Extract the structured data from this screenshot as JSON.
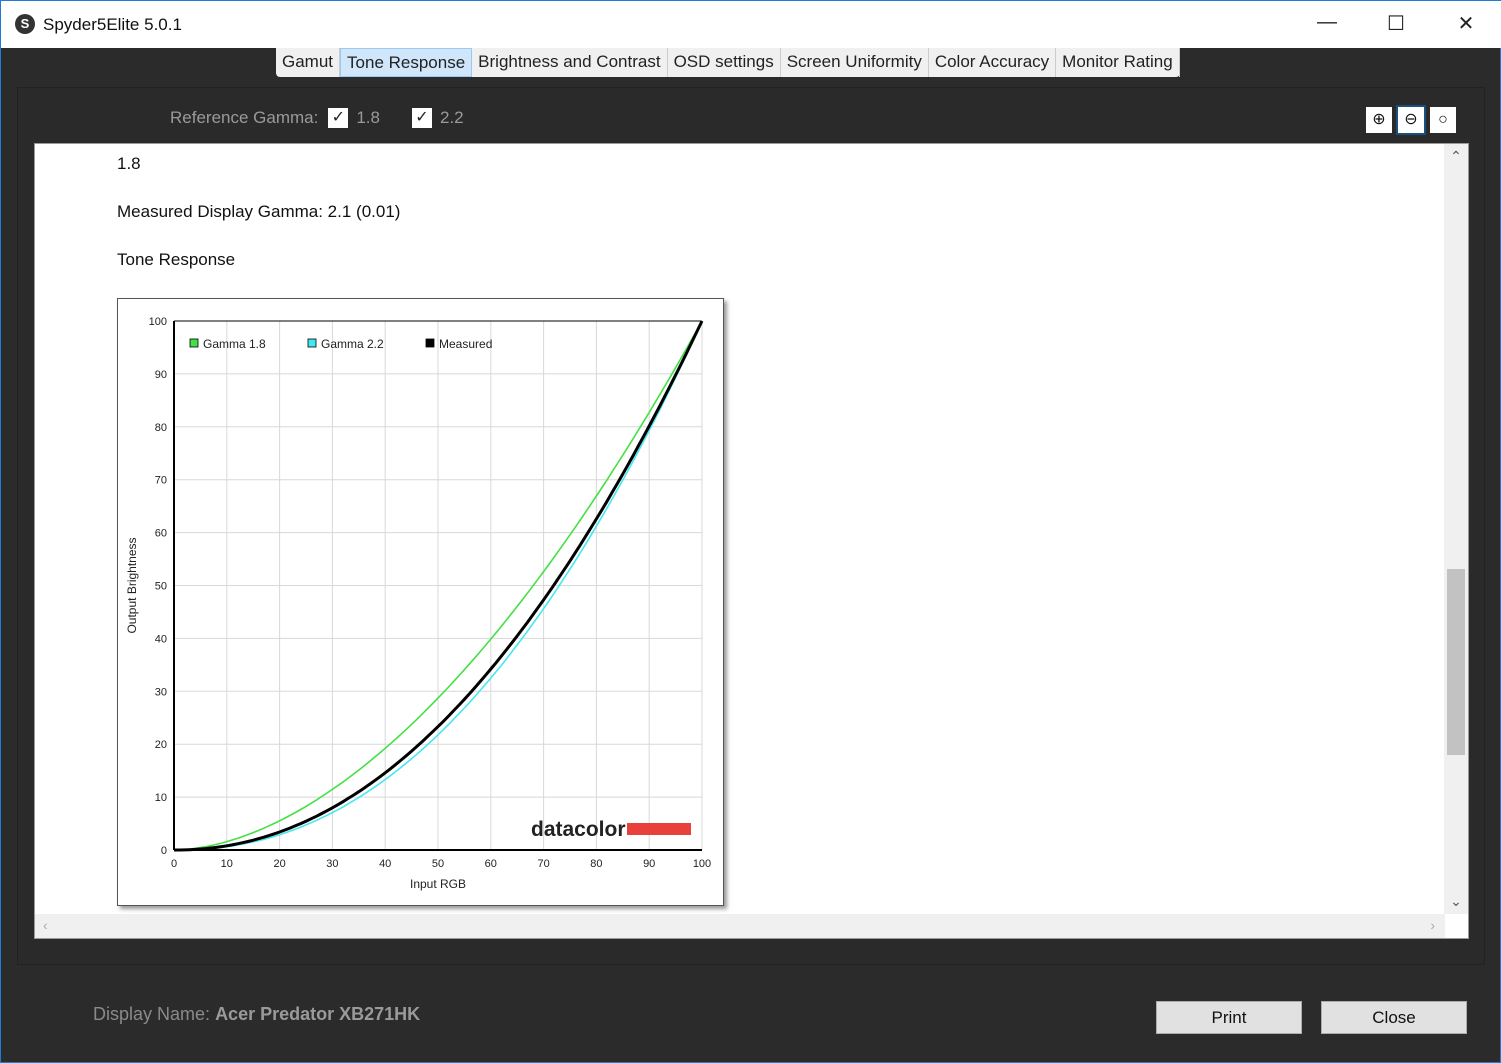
{
  "window": {
    "title": "Spyder5Elite 5.0.1",
    "minimize": "—",
    "maximize": "☐",
    "close": "✕"
  },
  "tabs": [
    {
      "label": "Gamut"
    },
    {
      "label": "Tone Response",
      "active": true
    },
    {
      "label": "Brightness and Contrast"
    },
    {
      "label": "OSD settings"
    },
    {
      "label": "Screen Uniformity"
    },
    {
      "label": "Color Accuracy"
    },
    {
      "label": "Monitor Rating"
    }
  ],
  "reference": {
    "label": "Reference Gamma:",
    "options": [
      {
        "value": "1.8",
        "checked": true
      },
      {
        "value": "2.2",
        "checked": true
      }
    ]
  },
  "report": {
    "line1": "1.8",
    "measured": "Measured Display Gamma: 2.1 (0.01)",
    "section": "Tone Response"
  },
  "chart_data": {
    "type": "line",
    "xlabel": "Input RGB",
    "ylabel": "Output Brightness",
    "xlim": [
      0,
      100
    ],
    "ylim": [
      0,
      100
    ],
    "xticks": [
      0,
      10,
      20,
      30,
      40,
      50,
      60,
      70,
      80,
      90,
      100
    ],
    "yticks": [
      0,
      10,
      20,
      30,
      40,
      50,
      60,
      70,
      80,
      90,
      100
    ],
    "grid": true,
    "legend": "top-left",
    "series": [
      {
        "name": "Gamma 1.8",
        "gamma": 1.8,
        "color": "#44e044"
      },
      {
        "name": "Gamma 2.2",
        "gamma": 2.2,
        "color": "#44e8f0"
      },
      {
        "name": "Measured",
        "gamma": 2.1,
        "color": "#000000"
      }
    ],
    "watermark": "datacolor"
  },
  "footer": {
    "display_label": "Display Name:",
    "display_name": "Acer Predator XB271HK",
    "print": "Print",
    "close": "Close"
  }
}
